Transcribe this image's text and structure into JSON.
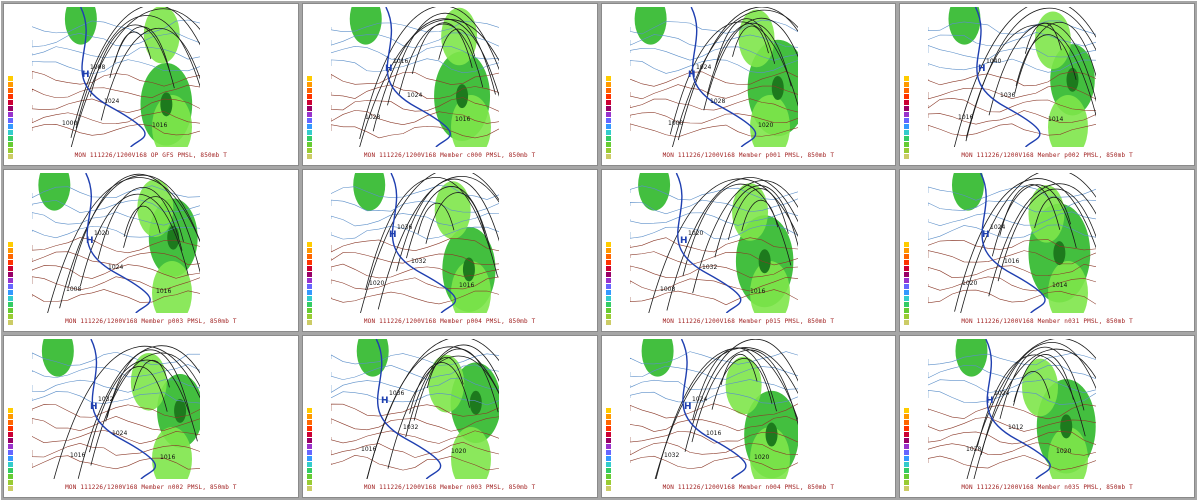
{
  "panels": [
    {
      "caption": "MON 111226/1200V168  OP GFS PMSL, 850mb T",
      "labels": [
        {
          "t": "1000"
        },
        {
          "t": "1008"
        },
        {
          "t": "1024"
        },
        {
          "t": "1016"
        },
        {
          "t": "H"
        }
      ]
    },
    {
      "caption": "MON 111226/1200V168  Member c000 PMSL, 850mb T",
      "labels": [
        {
          "t": "1028"
        },
        {
          "t": "1016"
        },
        {
          "t": "1024"
        },
        {
          "t": "1016"
        },
        {
          "t": "H"
        }
      ]
    },
    {
      "caption": "MON 111226/1200V168  Member p001 PMSL, 850mb T",
      "labels": [
        {
          "t": "1000"
        },
        {
          "t": "1024"
        },
        {
          "t": "1028"
        },
        {
          "t": "1020"
        },
        {
          "t": "H"
        }
      ]
    },
    {
      "caption": "MON 111226/1200V168  Member p002 PMSL, 850mb T",
      "labels": [
        {
          "t": "1016"
        },
        {
          "t": "1040"
        },
        {
          "t": "1036"
        },
        {
          "t": "1014"
        },
        {
          "t": "H"
        }
      ]
    },
    {
      "caption": "MON 111226/1200V168  Member p003 PMSL, 850mb T",
      "labels": [
        {
          "t": "1008"
        },
        {
          "t": "1020"
        },
        {
          "t": "1024"
        },
        {
          "t": "1016"
        },
        {
          "t": "H"
        }
      ]
    },
    {
      "caption": "MON 111226/1200V168  Member p004 PMSL, 850mb T",
      "labels": [
        {
          "t": "1020"
        },
        {
          "t": "1036"
        },
        {
          "t": "1032"
        },
        {
          "t": "1016"
        },
        {
          "t": "H"
        }
      ]
    },
    {
      "caption": "MON 111226/1200V168  Member p015 PMSL, 850mb T",
      "labels": [
        {
          "t": "1008"
        },
        {
          "t": "1020"
        },
        {
          "t": "1032"
        },
        {
          "t": "1016"
        },
        {
          "t": "H"
        }
      ]
    },
    {
      "caption": "MON 111226/1200V168  Member n031 PMSL, 850mb T",
      "labels": [
        {
          "t": "1020"
        },
        {
          "t": "1024"
        },
        {
          "t": "1016"
        },
        {
          "t": "1014"
        },
        {
          "t": "H"
        }
      ]
    },
    {
      "caption": "MON 111226/1200V168  Member n002 PMSL, 850mb T",
      "labels": [
        {
          "t": "1016"
        },
        {
          "t": "1032"
        },
        {
          "t": "1024"
        },
        {
          "t": "1016"
        },
        {
          "t": "H"
        }
      ]
    },
    {
      "caption": "MON 111226/1200V168  Member n003 PMSL, 850mb T",
      "labels": [
        {
          "t": "1016"
        },
        {
          "t": "1036"
        },
        {
          "t": "1032"
        },
        {
          "t": "1020"
        },
        {
          "t": "H"
        }
      ]
    },
    {
      "caption": "MON 111226/1200V168  Member n004 PMSL, 850mb T",
      "labels": [
        {
          "t": "1032"
        },
        {
          "t": "1024"
        },
        {
          "t": "1016"
        },
        {
          "t": "1020"
        },
        {
          "t": "H"
        }
      ]
    },
    {
      "caption": "MON 111226/1200V168  Member n035 PMSL, 850mb T",
      "labels": [
        {
          "t": "1028"
        },
        {
          "t": "1024"
        },
        {
          "t": "1012"
        },
        {
          "t": "1020"
        },
        {
          "t": "H"
        }
      ]
    }
  ],
  "colors": {
    "precip_light": "#7ee64a",
    "precip_mid": "#2fb82a",
    "precip_heavy": "#1d7a1d",
    "isobar": "#1a1a1a",
    "temp_warm": "#8b3a2a",
    "temp_cold": "#5c8fc9",
    "freezing_line": "#1f3fb0",
    "caption": "#a02020",
    "scale": [
      "#ffcc00",
      "#ff9900",
      "#ff6600",
      "#ff3300",
      "#cc0033",
      "#990066",
      "#9933cc",
      "#6666ff",
      "#3399ff",
      "#33cccc",
      "#33cc66",
      "#66cc33",
      "#99cc33",
      "#cccc66"
    ]
  }
}
